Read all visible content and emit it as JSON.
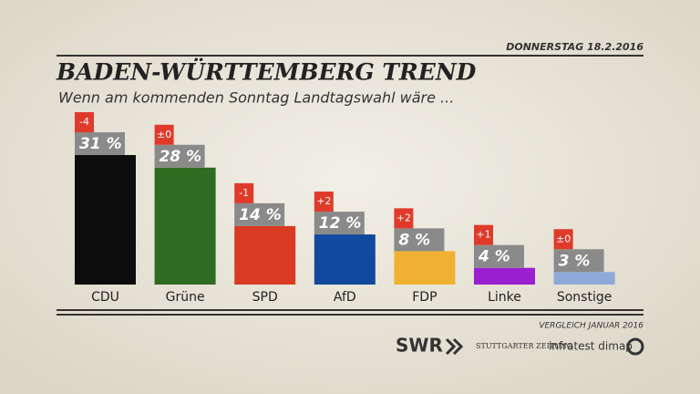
{
  "chart_data": {
    "type": "bar",
    "date": "DONNERSTAG 18.2.2016",
    "title": "BADEN-WÜRTTEMBERG TREND",
    "subtitle": "Wenn am kommenden Sonntag Landtagswahl wäre ...",
    "categories": [
      "CDU",
      "Grüne",
      "SPD",
      "AfD",
      "FDP",
      "Linke",
      "Sonstige"
    ],
    "values": [
      31,
      28,
      14,
      12,
      8,
      4,
      3
    ],
    "value_labels": [
      "31 %",
      "28 %",
      "14 %",
      "12 %",
      "8 %",
      "4 %",
      "3 %"
    ],
    "colors": [
      "#0c0c0c",
      "#2f6b20",
      "#d83a22",
      "#10499d",
      "#f0b032",
      "#9a1fd0",
      "#8ea9d8"
    ],
    "changes": [
      -4,
      0,
      -1,
      2,
      2,
      1,
      0
    ],
    "change_labels": [
      "-4",
      "±0",
      "-1",
      "+2",
      "+2",
      "+1",
      "±0"
    ],
    "footnote": "VERGLEICH JANUAR 2016",
    "sources": [
      "SWR",
      "STUTTGARTER ZEITUNG",
      "infratest dimap"
    ]
  }
}
